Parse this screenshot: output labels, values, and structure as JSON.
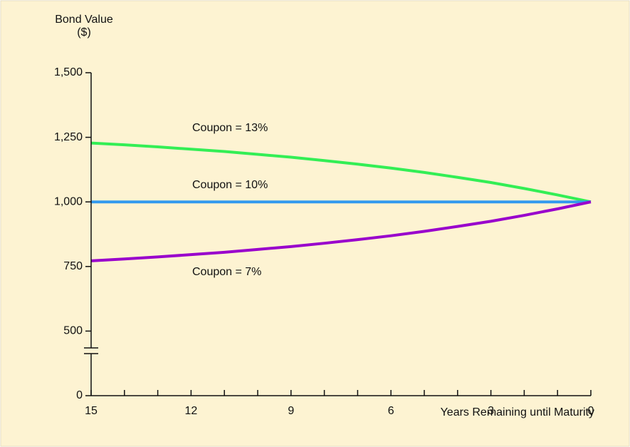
{
  "chart_data": {
    "type": "line",
    "ylabel": [
      "Bond Value",
      "($)"
    ],
    "xlabel": "Years Remaining until Maturity",
    "x": [
      15,
      14,
      13,
      12,
      11,
      10,
      9,
      8,
      7,
      6,
      5,
      4,
      3,
      2,
      1,
      0
    ],
    "series": [
      {
        "name": "Coupon = 13%",
        "color": "#33ee55",
        "values": [
          1228,
          1221,
          1213,
          1204,
          1195,
          1184,
          1173,
          1160,
          1146,
          1131,
          1114,
          1095,
          1075,
          1052,
          1027,
          1000
        ]
      },
      {
        "name": "Coupon = 10%",
        "color": "#3399ee",
        "values": [
          1000,
          1000,
          1000,
          1000,
          1000,
          1000,
          1000,
          1000,
          1000,
          1000,
          1000,
          1000,
          1000,
          1000,
          1000,
          1000
        ]
      },
      {
        "name": "Coupon = 7%",
        "color": "#9900cc",
        "values": [
          772,
          779,
          787,
          796,
          805,
          816,
          827,
          840,
          854,
          869,
          886,
          905,
          925,
          948,
          973,
          1000
        ]
      }
    ],
    "xlim": [
      15,
      0
    ],
    "xticks": [
      15,
      12,
      9,
      6,
      3,
      0
    ],
    "xminorticks": [
      14,
      13,
      11,
      10,
      8,
      7,
      5,
      4,
      2,
      1
    ],
    "ylim": [
      0,
      1500
    ],
    "yticks": [
      0,
      {
        "value": 500,
        "label": "500"
      },
      {
        "value": 750,
        "label": "750"
      },
      {
        "value": 1000,
        "label": "1,000"
      },
      {
        "value": 1250,
        "label": "1,250"
      },
      {
        "value": 1500,
        "label": "1,500"
      }
    ],
    "axis_break": true
  }
}
